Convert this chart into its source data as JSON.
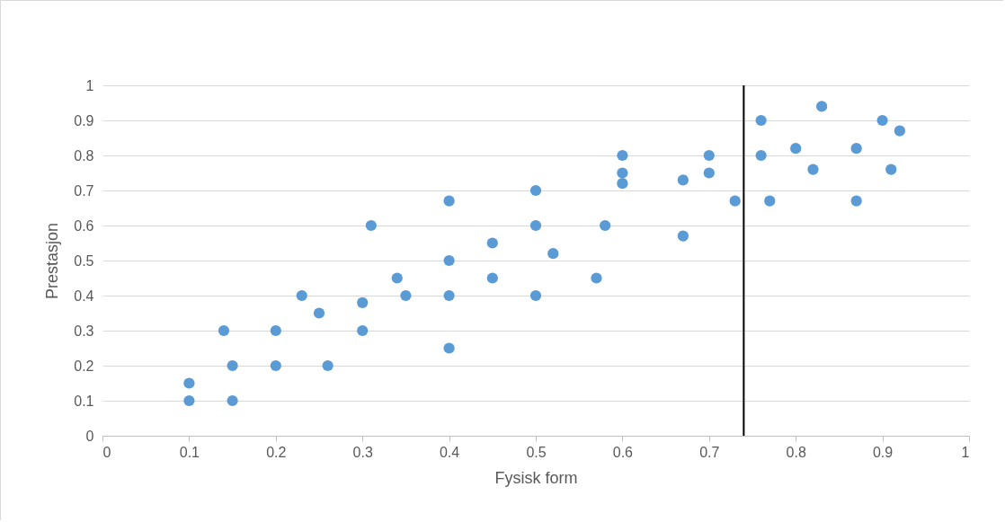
{
  "chart_data": {
    "type": "scatter",
    "xlabel": "Fysisk form",
    "ylabel": "Prestasjon",
    "x": [
      0.1,
      0.1,
      0.15,
      0.15,
      0.14,
      0.2,
      0.2,
      0.23,
      0.25,
      0.26,
      0.3,
      0.3,
      0.31,
      0.34,
      0.35,
      0.4,
      0.4,
      0.4,
      0.4,
      0.45,
      0.45,
      0.5,
      0.5,
      0.5,
      0.52,
      0.57,
      0.58,
      0.6,
      0.6,
      0.6,
      0.67,
      0.67,
      0.7,
      0.7,
      0.73,
      0.76,
      0.76,
      0.77,
      0.8,
      0.83,
      0.82,
      0.87,
      0.87,
      0.9,
      0.92,
      0.91
    ],
    "series": [
      {
        "color": "#5b9bd5",
        "values": [
          0.1,
          0.15,
          0.1,
          0.2,
          0.3,
          0.2,
          0.3,
          0.4,
          0.35,
          0.2,
          0.3,
          0.38,
          0.6,
          0.45,
          0.4,
          0.67,
          0.5,
          0.4,
          0.25,
          0.55,
          0.45,
          0.7,
          0.6,
          0.4,
          0.52,
          0.45,
          0.6,
          0.8,
          0.75,
          0.72,
          0.73,
          0.57,
          0.8,
          0.75,
          0.67,
          0.9,
          0.8,
          0.67,
          0.82,
          0.94,
          0.76,
          0.82,
          0.67,
          0.9,
          0.87,
          0.76
        ]
      }
    ],
    "xlim": [
      0,
      1
    ],
    "xticks": [
      0,
      0.1,
      0.2,
      0.3,
      0.4,
      0.5,
      0.6,
      0.7,
      0.8,
      0.9,
      1
    ],
    "ylim": [
      0,
      1
    ],
    "yticks": [
      0,
      0.1,
      0.2,
      0.3,
      0.4,
      0.5,
      0.6,
      0.7,
      0.8,
      0.9,
      1
    ],
    "ref_lines": [
      {
        "axis": "x",
        "value": 0.74,
        "color": "#000000"
      }
    ],
    "grid": "y",
    "marker": "circle"
  }
}
